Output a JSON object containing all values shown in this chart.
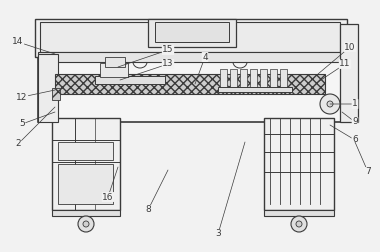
{
  "bg_color": "#f2f2f2",
  "line_color": "#3a3a3a",
  "labels_info": [
    [
      "1",
      355,
      148,
      330,
      148
    ],
    [
      "2",
      18,
      108,
      55,
      145
    ],
    [
      "3",
      218,
      18,
      245,
      110
    ],
    [
      "4",
      205,
      195,
      195,
      168
    ],
    [
      "5",
      22,
      128,
      55,
      140
    ],
    [
      "6",
      355,
      112,
      330,
      127
    ],
    [
      "7",
      368,
      80,
      355,
      110
    ],
    [
      "8",
      148,
      42,
      168,
      82
    ],
    [
      "9",
      355,
      130,
      342,
      140
    ],
    [
      "10",
      350,
      205,
      318,
      178
    ],
    [
      "11",
      345,
      188,
      318,
      170
    ],
    [
      "12",
      22,
      155,
      55,
      162
    ],
    [
      "13",
      168,
      188,
      120,
      172
    ],
    [
      "14",
      18,
      210,
      55,
      198
    ],
    [
      "15",
      168,
      202,
      118,
      185
    ],
    [
      "16",
      108,
      55,
      118,
      85
    ]
  ]
}
